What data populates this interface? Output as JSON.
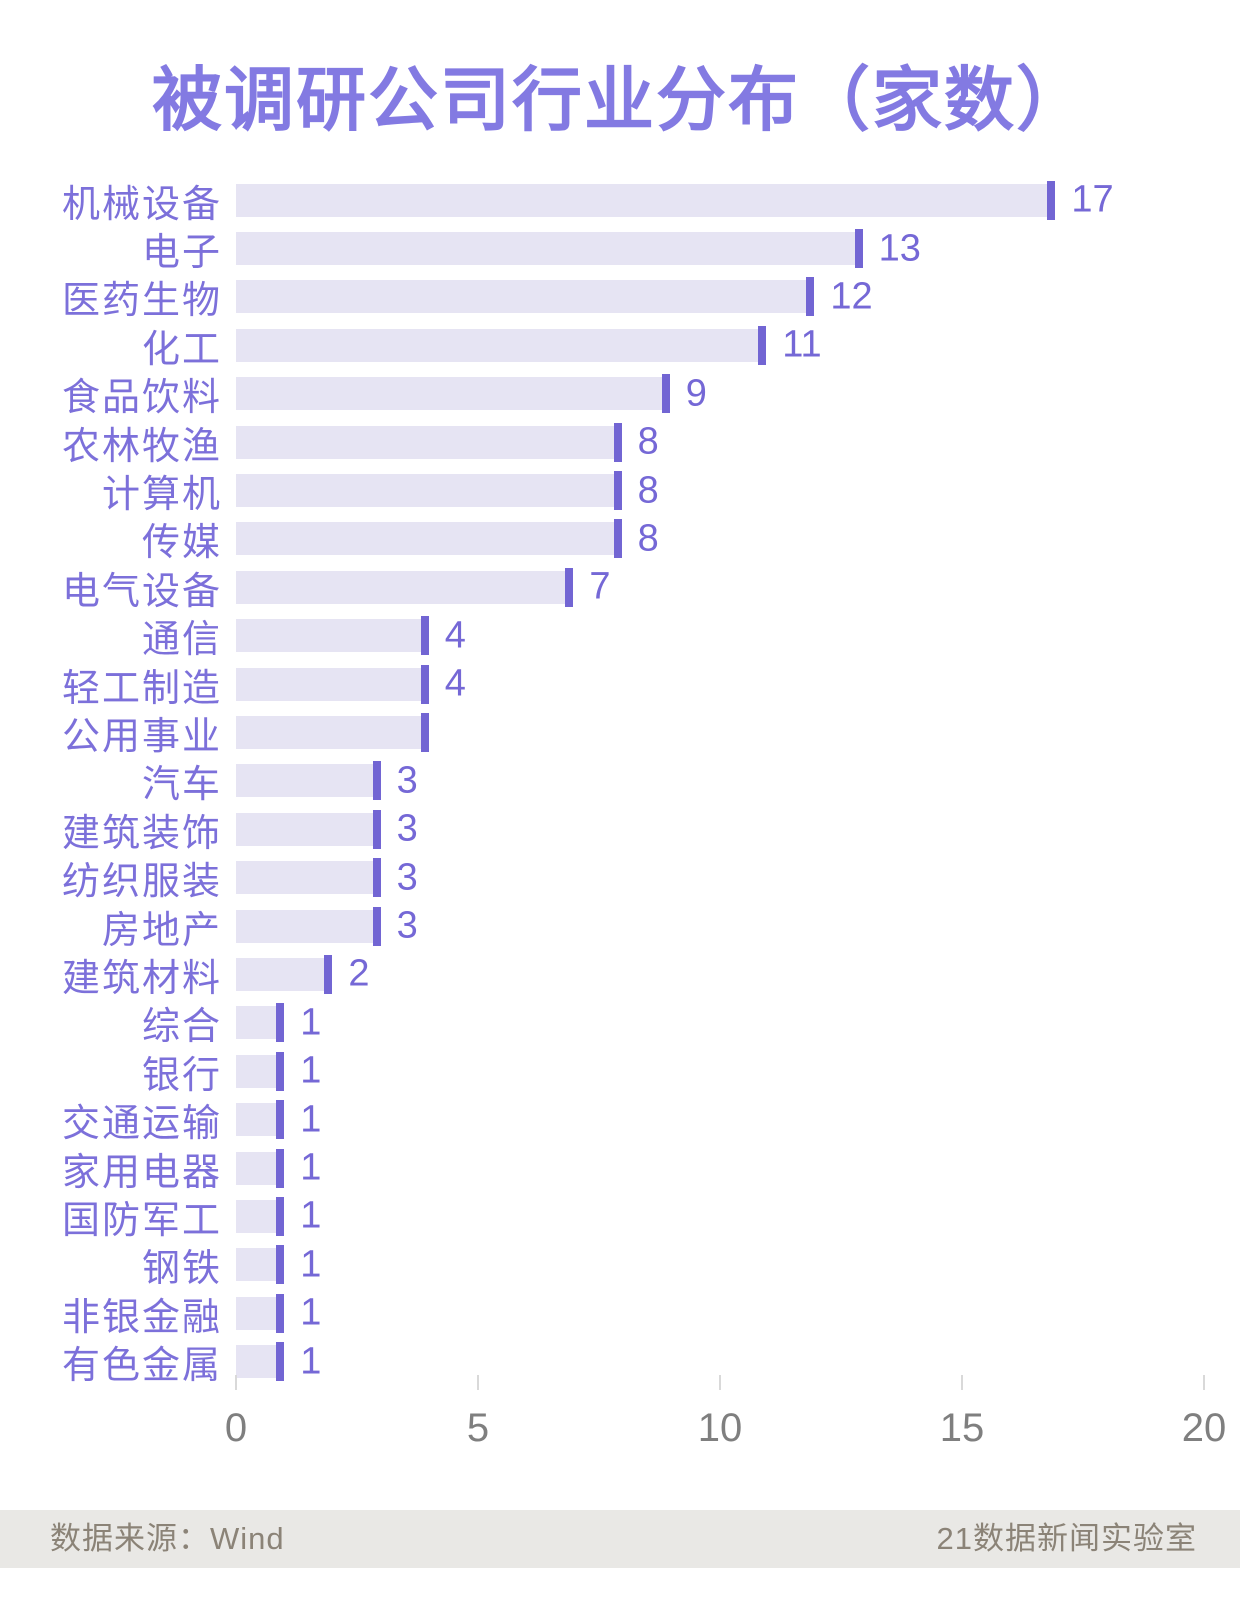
{
  "title": "被调研公司行业分布（家数）",
  "chart_data": {
    "type": "bar",
    "orientation": "horizontal",
    "title": "被调研公司行业分布（家数）",
    "categories": [
      "机械设备",
      "电子",
      "医药生物",
      "化工",
      "食品饮料",
      "农林牧渔",
      "计算机",
      "传媒",
      "电气设备",
      "通信",
      "轻工制造",
      "公用事业",
      "汽车",
      "建筑装饰",
      "纺织服装",
      "房地产",
      "建筑材料",
      "综合",
      "银行",
      "交通运输",
      "家用电器",
      "国防军工",
      "钢铁",
      "非银金融",
      "有色金属"
    ],
    "values": [
      17,
      13,
      12,
      11,
      9,
      8,
      8,
      8,
      7,
      4,
      4,
      4,
      3,
      3,
      3,
      3,
      2,
      1,
      1,
      1,
      1,
      1,
      1,
      1,
      1
    ],
    "value_labels": [
      "17",
      "13",
      "12",
      "11",
      "9",
      "8",
      "8",
      "8",
      "7",
      "4",
      "4",
      "",
      "3",
      "3",
      "3",
      "3",
      "2",
      "1",
      "1",
      "1",
      "1",
      "1",
      "1",
      "1",
      "1"
    ],
    "xlabel": "",
    "ylabel": "",
    "xlim": [
      0,
      20
    ],
    "x_ticks": [
      "0",
      "5",
      "10",
      "15",
      "20"
    ],
    "grid": false,
    "legend": false,
    "colors": {
      "title": "#837ae2",
      "category_label": "#7c70da",
      "bar_fill": "#e6e4f3",
      "bar_marker": "#7265d3",
      "value_label": "#7568d6",
      "axis_label": "#7f7f7f",
      "tick_mark": "#d9d9d9"
    }
  },
  "footer": {
    "source": "数据来源：Wind",
    "credit": "21数据新闻实验室",
    "background": "#e9e8e5",
    "text_color": "#8b8377"
  }
}
